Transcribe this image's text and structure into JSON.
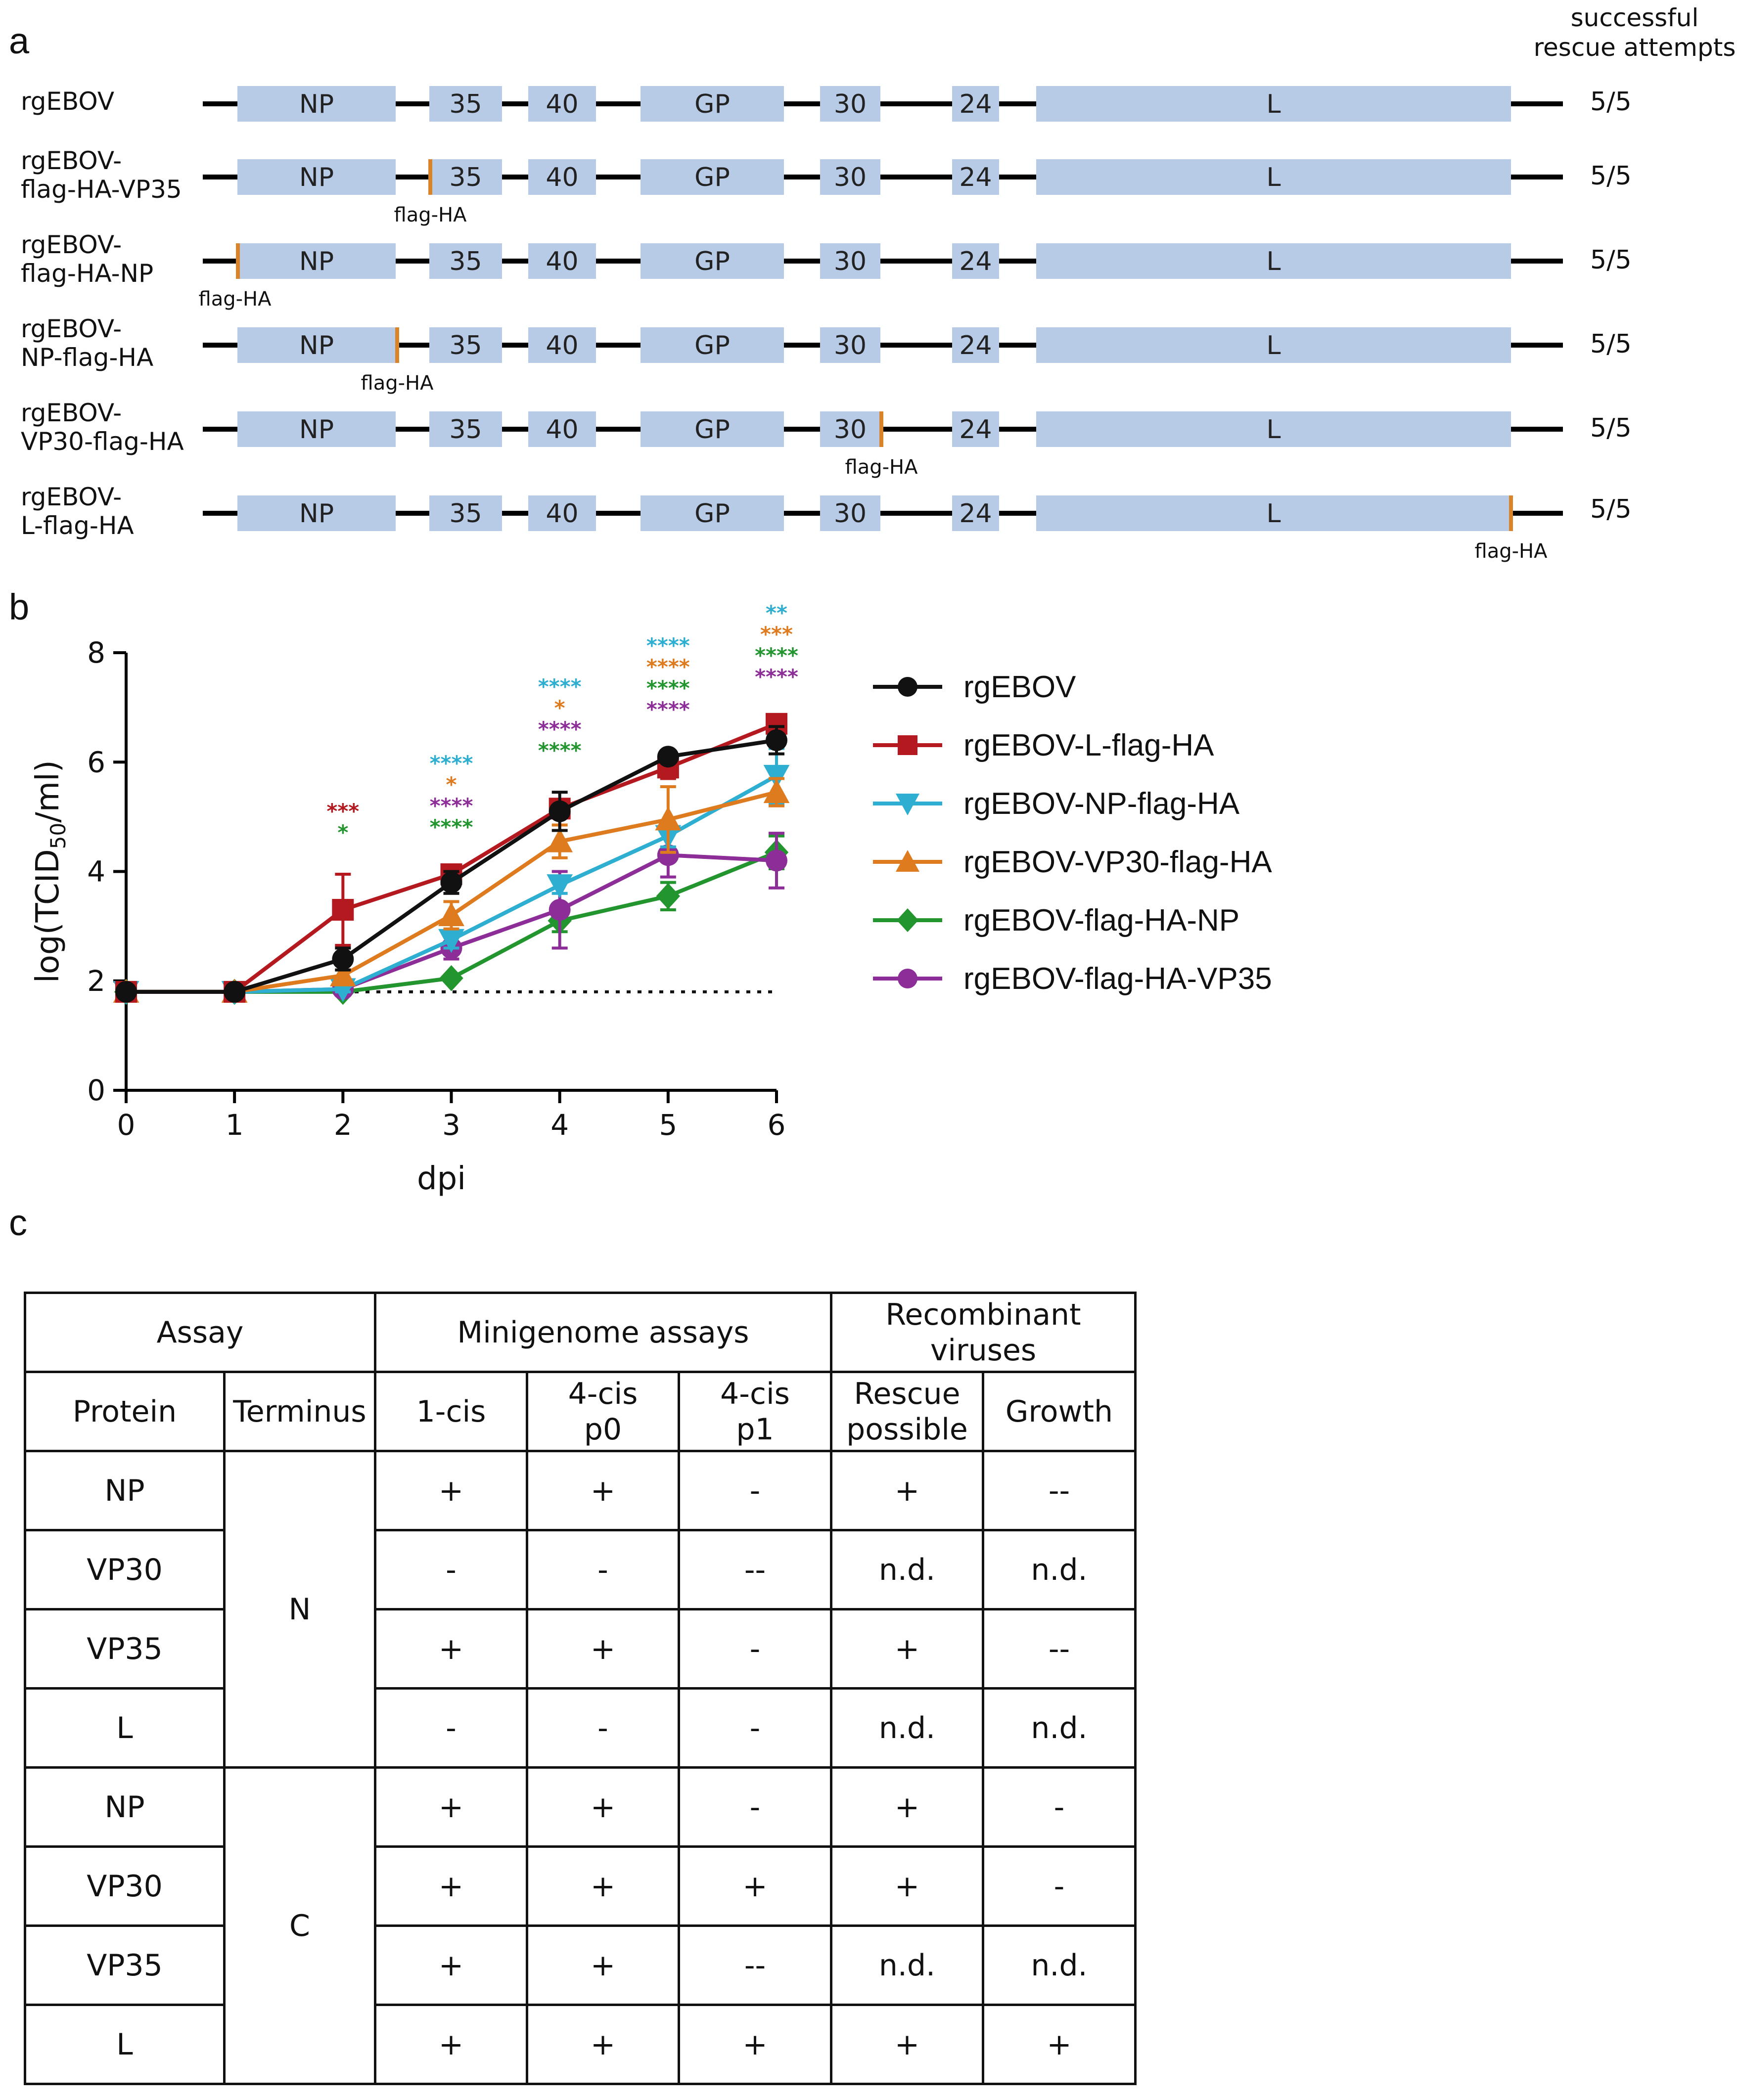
{
  "panel_a": {
    "letter": "a",
    "rescue_header_line1": "successful",
    "rescue_header_line2": "rescue attempts",
    "segments": {
      "np": "NP",
      "vp35": "35",
      "vp40": "40",
      "gp": "GP",
      "vp30": "30",
      "vp24": "24",
      "l": "L"
    },
    "tag_label": "flag-HA",
    "constructs": [
      {
        "line1": "rgEBOV",
        "line2": "",
        "rescue": "5/5"
      },
      {
        "line1": "rgEBOV-",
        "line2": "flag-HA-VP35",
        "rescue": "5/5"
      },
      {
        "line1": "rgEBOV-",
        "line2": "flag-HA-NP",
        "rescue": "5/5"
      },
      {
        "line1": "rgEBOV-",
        "line2": "NP-flag-HA",
        "rescue": "5/5"
      },
      {
        "line1": "rgEBOV-",
        "line2": "VP30-flag-HA",
        "rescue": "5/5"
      },
      {
        "line1": "rgEBOV-",
        "line2": "L-flag-HA",
        "rescue": "5/5"
      }
    ]
  },
  "panel_b": {
    "letter": "b"
  },
  "panel_c": {
    "letter": "c",
    "headers": {
      "assay": "Assay",
      "minigenome": "Minigenome assays",
      "recombinant_line1": "Recombinant",
      "recombinant_line2": "viruses",
      "protein": "Protein",
      "terminus": "Terminus",
      "cis1": "1-cis",
      "cis4p0_line1": "4-cis",
      "cis4p0_line2": "p0",
      "cis4p1_line1": "4-cis",
      "cis4p1_line2": "p1",
      "rescue_line1": "Rescue",
      "rescue_line2": "possible",
      "growth": "Growth"
    },
    "terminus_n": "N",
    "terminus_c": "C",
    "rows": [
      {
        "protein": "NP",
        "cis1": "+",
        "p0": "+",
        "p1": "-",
        "rescue": "+",
        "growth": "--"
      },
      {
        "protein": "VP30",
        "cis1": "-",
        "p0": "-",
        "p1": "--",
        "rescue": "n.d.",
        "growth": "n.d."
      },
      {
        "protein": "VP35",
        "cis1": "+",
        "p0": "+",
        "p1": "-",
        "rescue": "+",
        "growth": "--"
      },
      {
        "protein": "L",
        "cis1": "-",
        "p0": "-",
        "p1": "-",
        "rescue": "n.d.",
        "growth": "n.d."
      },
      {
        "protein": "NP",
        "cis1": "+",
        "p0": "+",
        "p1": "-",
        "rescue": "+",
        "growth": "-"
      },
      {
        "protein": "VP30",
        "cis1": "+",
        "p0": "+",
        "p1": "+",
        "rescue": "+",
        "growth": "-"
      },
      {
        "protein": "VP35",
        "cis1": "+",
        "p0": "+",
        "p1": "--",
        "rescue": "n.d.",
        "growth": "n.d."
      },
      {
        "protein": "L",
        "cis1": "+",
        "p0": "+",
        "p1": "+",
        "rescue": "+",
        "growth": "+"
      }
    ]
  },
  "chart_data": {
    "type": "line",
    "xlabel": "dpi",
    "ylabel_main": "log(TCID",
    "ylabel_sub": "50",
    "ylabel_tail": "/ml)",
    "x": [
      0,
      1,
      2,
      3,
      4,
      5,
      6
    ],
    "xlim": [
      0,
      6
    ],
    "ylim": [
      0,
      8
    ],
    "yticks": [
      0,
      2,
      4,
      6,
      8
    ],
    "detection_limit": 1.8,
    "series": [
      {
        "name": "rgEBOV",
        "color": "#111111",
        "marker": "circle",
        "values": [
          1.8,
          1.8,
          2.4,
          3.8,
          5.1,
          6.1,
          6.4
        ],
        "err": [
          0,
          0,
          0.2,
          0.2,
          0.35,
          0.1,
          0.25
        ]
      },
      {
        "name": "rgEBOV-L-flag-HA",
        "color": "#b3191f",
        "marker": "square",
        "values": [
          1.8,
          1.8,
          3.3,
          3.95,
          5.15,
          5.9,
          6.7
        ],
        "err": [
          0,
          0,
          0.65,
          0.1,
          0.1,
          0.2,
          0.1
        ]
      },
      {
        "name": "rgEBOV-NP-flag-HA",
        "color": "#2eaed0",
        "marker": "tri-down",
        "values": [
          1.8,
          1.8,
          1.85,
          2.75,
          3.75,
          4.65,
          5.75
        ],
        "err": [
          0,
          0,
          0.05,
          0.15,
          0.15,
          0.2,
          0.5
        ]
      },
      {
        "name": "rgEBOV-VP30-flag-HA",
        "color": "#de7b1f",
        "marker": "tri-up",
        "values": [
          1.8,
          1.8,
          2.1,
          3.2,
          4.55,
          4.95,
          5.45
        ],
        "err": [
          0,
          0,
          0.1,
          0.25,
          0.3,
          0.6,
          0.25
        ]
      },
      {
        "name": "rgEBOV-flag-HA-NP",
        "color": "#23952f",
        "marker": "diamond",
        "values": [
          1.8,
          1.8,
          1.8,
          2.05,
          3.1,
          3.55,
          4.35
        ],
        "err": [
          0,
          0,
          0.02,
          0.05,
          0.2,
          0.25,
          0.3
        ]
      },
      {
        "name": "rgEBOV-flag-HA-VP35",
        "color": "#8c2d98",
        "marker": "circle",
        "values": [
          1.8,
          1.8,
          1.85,
          2.6,
          3.3,
          4.3,
          4.2
        ],
        "err": [
          0,
          0,
          0.05,
          0.2,
          0.7,
          0.4,
          0.5
        ]
      }
    ],
    "significance": [
      {
        "x": 2,
        "marks": [
          {
            "text": "***",
            "color": "#b3191f"
          },
          {
            "text": "*",
            "color": "#23952f"
          }
        ]
      },
      {
        "x": 3,
        "marks": [
          {
            "text": "****",
            "color": "#2eaed0"
          },
          {
            "text": "*",
            "color": "#de7b1f"
          },
          {
            "text": "****",
            "color": "#8c2d98"
          },
          {
            "text": "****",
            "color": "#23952f"
          }
        ]
      },
      {
        "x": 4,
        "marks": [
          {
            "text": "****",
            "color": "#2eaed0"
          },
          {
            "text": "*",
            "color": "#de7b1f"
          },
          {
            "text": "****",
            "color": "#8c2d98"
          },
          {
            "text": "****",
            "color": "#23952f"
          }
        ]
      },
      {
        "x": 5,
        "marks": [
          {
            "text": "****",
            "color": "#2eaed0"
          },
          {
            "text": "****",
            "color": "#de7b1f"
          },
          {
            "text": "****",
            "color": "#23952f"
          },
          {
            "text": "****",
            "color": "#8c2d98"
          }
        ]
      },
      {
        "x": 6,
        "marks": [
          {
            "text": "**",
            "color": "#2eaed0"
          },
          {
            "text": "***",
            "color": "#de7b1f"
          },
          {
            "text": "****",
            "color": "#23952f"
          },
          {
            "text": "****",
            "color": "#8c2d98"
          }
        ]
      }
    ]
  }
}
